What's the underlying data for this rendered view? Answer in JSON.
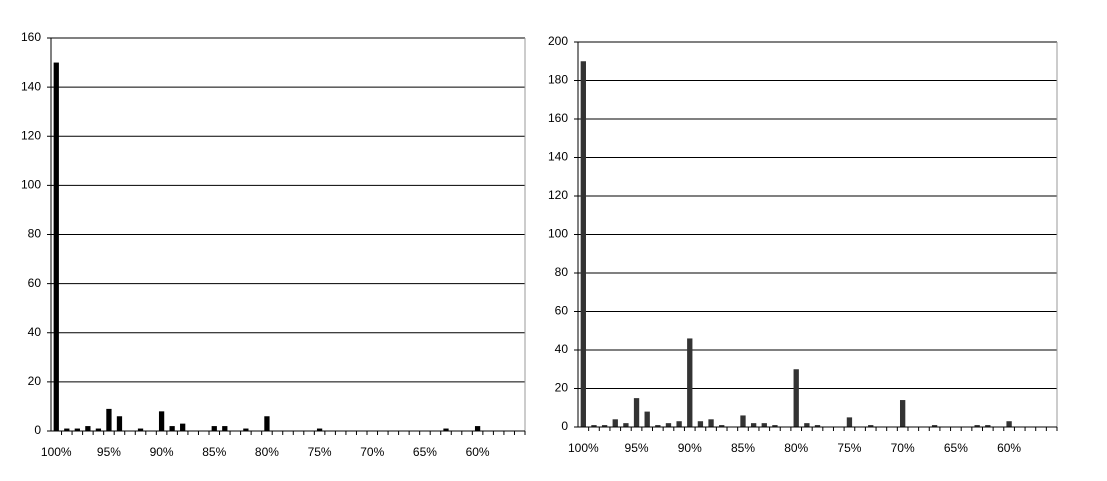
{
  "chart_data": [
    {
      "type": "bar",
      "categories": [
        "100%",
        null,
        null,
        null,
        null,
        "95%",
        null,
        null,
        null,
        null,
        "90%",
        null,
        null,
        null,
        null,
        "85%",
        null,
        null,
        null,
        null,
        "80%",
        null,
        null,
        null,
        null,
        "75%",
        null,
        null,
        null,
        null,
        "70%",
        null,
        null,
        null,
        null,
        "65%",
        null,
        null,
        null,
        null,
        "60%",
        null,
        null,
        null,
        null
      ],
      "values": [
        150,
        1,
        1,
        2,
        1,
        9,
        6,
        0,
        1,
        0,
        8,
        2,
        3,
        0,
        0,
        2,
        2,
        0,
        1,
        0,
        6,
        0,
        0,
        0,
        0,
        1,
        0,
        0,
        0,
        0,
        0,
        0,
        0,
        0,
        0,
        0,
        0,
        1,
        0,
        0,
        2,
        0,
        0,
        0,
        0
      ],
      "color": "#000000",
      "ylim": [
        0,
        160
      ],
      "yticks": [
        0,
        20,
        40,
        60,
        80,
        100,
        120,
        140,
        160
      ],
      "grid": true
    },
    {
      "type": "bar",
      "categories": [
        "100%",
        null,
        null,
        null,
        null,
        "95%",
        null,
        null,
        null,
        null,
        "90%",
        null,
        null,
        null,
        null,
        "85%",
        null,
        null,
        null,
        null,
        "80%",
        null,
        null,
        null,
        null,
        "75%",
        null,
        null,
        null,
        null,
        "70%",
        null,
        null,
        null,
        null,
        "65%",
        null,
        null,
        null,
        null,
        "60%",
        null,
        null,
        null,
        null
      ],
      "values": [
        190,
        1,
        1,
        4,
        2,
        15,
        8,
        1,
        2,
        3,
        46,
        3,
        4,
        1,
        0,
        6,
        2,
        2,
        1,
        0,
        30,
        2,
        1,
        0,
        0,
        5,
        0,
        1,
        0,
        0,
        14,
        0,
        0,
        1,
        0,
        0,
        0,
        1,
        1,
        0,
        3,
        0,
        0,
        0,
        0
      ],
      "color": "#333333",
      "ylim": [
        0,
        200
      ],
      "yticks": [
        0,
        20,
        40,
        60,
        80,
        100,
        120,
        140,
        160,
        180,
        200
      ],
      "grid": true
    }
  ]
}
